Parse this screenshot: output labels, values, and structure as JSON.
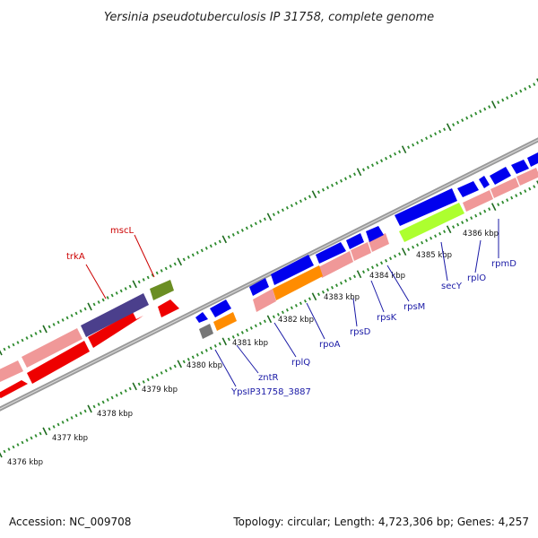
{
  "title": "Yersinia pseudotuberculosis IP 31758, complete genome",
  "footer": {
    "accession": "Accession: NC_009708",
    "summary": "Topology: circular; Length: 4,723,306 bp; Genes: 4,257"
  },
  "colors": {
    "background": "#ffffff",
    "backbone": "#9a9a9a",
    "tick_minor": "#2e8b2e",
    "tick_major": "#1f6b1f",
    "label_red": "#cc0000",
    "label_blue": "#1a1aa6",
    "forward_gene": "#0000ee",
    "reverse_gene": "#ee0000",
    "pink_gene": "#f09898",
    "trkA": "#4b3f8c",
    "mscL": "#6b8e23",
    "orange_gene": "#ff8c00",
    "secY": "#adff2f",
    "grey_gene": "#777777"
  },
  "scale_labels": [
    "4376 kbp",
    "4377 kbp",
    "4378 kbp",
    "4379 kbp",
    "4380 kbp",
    "4381 kbp",
    "4382 kbp",
    "4383 kbp",
    "4384 kbp",
    "4385 kbp",
    "4386 kbp"
  ],
  "gene_labels": [
    {
      "text": "trkA",
      "color": "red"
    },
    {
      "text": "mscL",
      "color": "red"
    },
    {
      "text": "YpsIP31758_3887",
      "color": "blue"
    },
    {
      "text": "zntR",
      "color": "blue"
    },
    {
      "text": "rplQ",
      "color": "blue"
    },
    {
      "text": "rpoA",
      "color": "blue"
    },
    {
      "text": "rpsD",
      "color": "blue"
    },
    {
      "text": "rpsK",
      "color": "blue"
    },
    {
      "text": "rpsM",
      "color": "blue"
    },
    {
      "text": "secY",
      "color": "blue"
    },
    {
      "text": "rplO",
      "color": "blue"
    },
    {
      "text": "rpmD",
      "color": "blue"
    }
  ]
}
